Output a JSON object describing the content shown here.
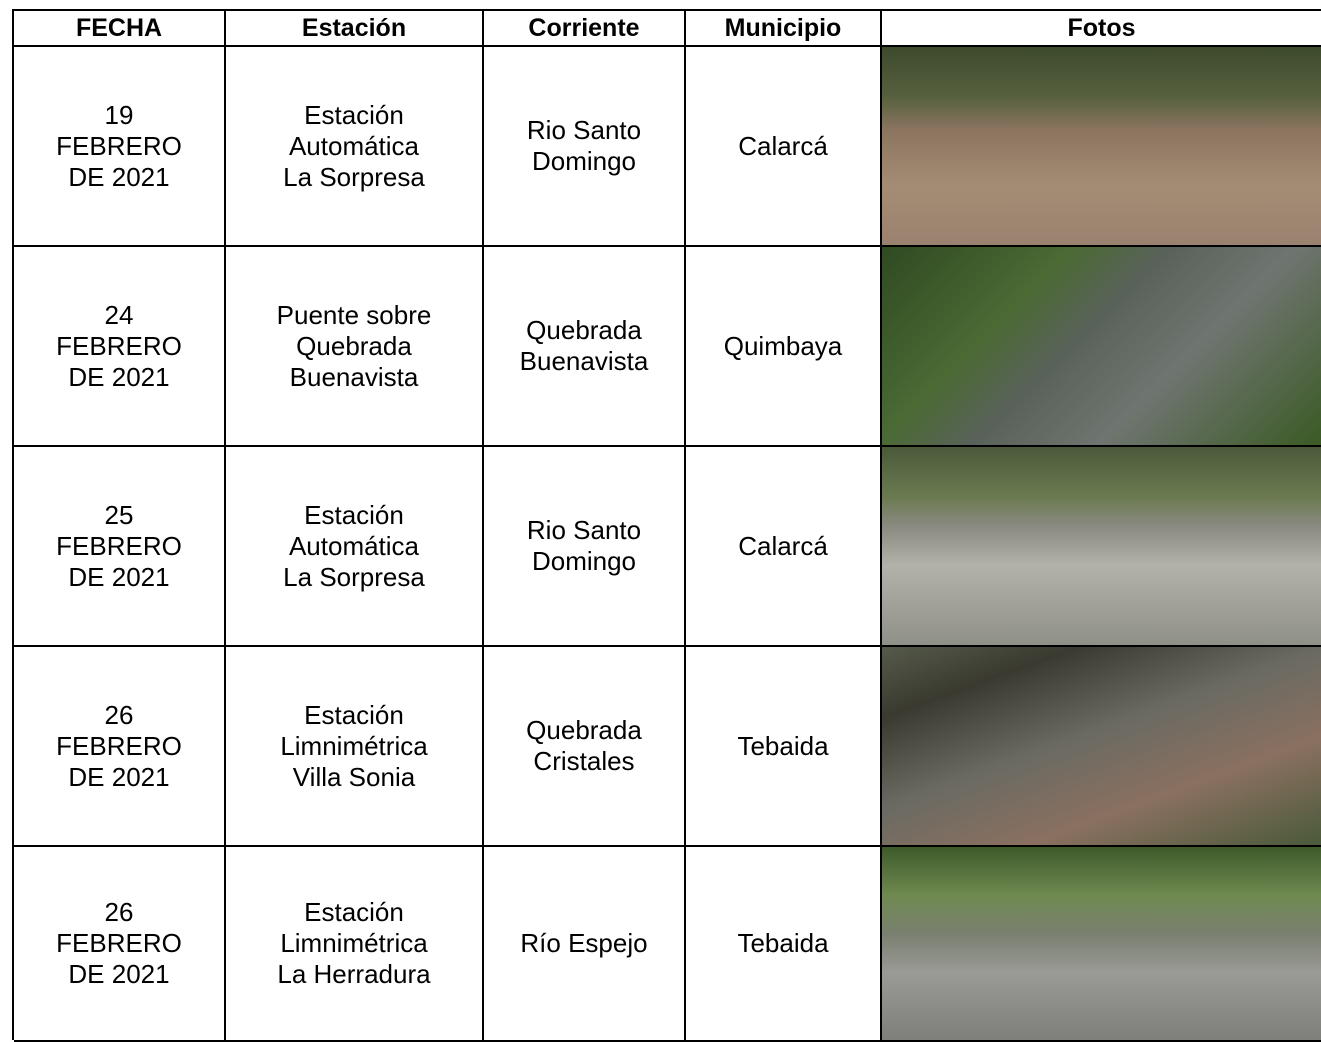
{
  "table": {
    "header": [
      "FECHA",
      "Estación",
      "Corriente",
      "Municipio",
      "Fotos"
    ],
    "rows": [
      {
        "fecha": [
          "19",
          "FEBRERO",
          "DE 2021"
        ],
        "estacion": [
          "Estación",
          "Automática",
          "La Sorpresa"
        ],
        "corriente": [
          "Rio Santo",
          "Domingo"
        ],
        "municipio": [
          "Calarcá"
        ]
      },
      {
        "fecha": [
          "24",
          "FEBRERO",
          "DE 2021"
        ],
        "estacion": [
          "Puente sobre",
          "Quebrada",
          "Buenavista"
        ],
        "corriente": [
          "Quebrada",
          "Buenavista"
        ],
        "municipio": [
          "Quimbaya"
        ]
      },
      {
        "fecha": [
          "25",
          "FEBRERO",
          "DE 2021"
        ],
        "estacion": [
          "Estación",
          "Automática",
          "La Sorpresa"
        ],
        "corriente": [
          "Rio Santo",
          "Domingo"
        ],
        "municipio": [
          "Calarcá"
        ]
      },
      {
        "fecha": [
          "26",
          "FEBRERO",
          "DE 2021"
        ],
        "estacion": [
          "Estación",
          "Limnimétrica",
          "Villa Sonia"
        ],
        "corriente": [
          "Quebrada",
          "Cristales"
        ],
        "municipio": [
          "Tebaida"
        ]
      },
      {
        "fecha": [
          "26",
          "FEBRERO",
          "DE 2021"
        ],
        "estacion": [
          "Estación",
          "Limnimétrica",
          "La Herradura"
        ],
        "corriente": [
          "Río Espejo"
        ],
        "municipio": [
          "Tebaida"
        ]
      }
    ]
  }
}
